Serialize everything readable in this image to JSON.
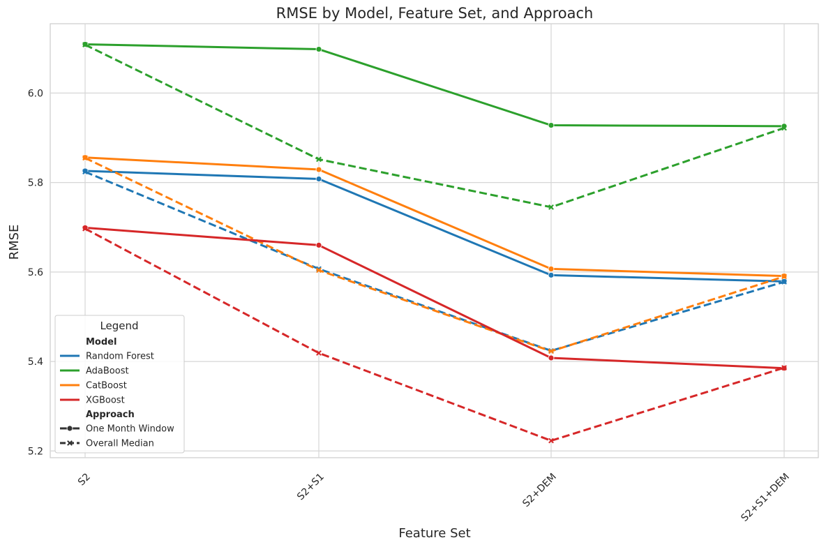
{
  "chart_data": {
    "type": "line",
    "title": "RMSE by Model, Feature Set, and Approach",
    "xlabel": "Feature Set",
    "ylabel": "RMSE",
    "categories": [
      "S2",
      "S2+S1",
      "S2+DEM",
      "S2+S1+DEM"
    ],
    "ylim": [
      5.185,
      6.155
    ],
    "yticks": [
      "5.2",
      "5.4",
      "5.6",
      "5.8",
      "6.0"
    ],
    "grid": true,
    "legend": {
      "title": "Legend",
      "placement": "lower-left",
      "model_heading": "Model",
      "approach_heading": "Approach",
      "models": [
        {
          "name": "Random Forest",
          "color": "#1f77b4"
        },
        {
          "name": "AdaBoost",
          "color": "#2ca02c"
        },
        {
          "name": "CatBoost",
          "color": "#ff7f0e"
        },
        {
          "name": "XGBoost",
          "color": "#d62728"
        }
      ],
      "approaches": [
        {
          "name": "One Month Window",
          "style": "solid",
          "marker": "circle"
        },
        {
          "name": "Overall Median",
          "style": "dashed",
          "marker": "x"
        }
      ]
    },
    "series": [
      {
        "name": "Random Forest",
        "approach": "One Month Window",
        "color": "#1f77b4",
        "values": [
          5.826,
          5.808,
          5.593,
          5.579
        ]
      },
      {
        "name": "Random Forest",
        "approach": "Overall Median",
        "color": "#1f77b4",
        "values": [
          5.824,
          5.607,
          5.424,
          5.578
        ]
      },
      {
        "name": "AdaBoost",
        "approach": "One Month Window",
        "color": "#2ca02c",
        "values": [
          6.109,
          6.098,
          5.928,
          5.926
        ]
      },
      {
        "name": "AdaBoost",
        "approach": "Overall Median",
        "color": "#2ca02c",
        "values": [
          6.108,
          5.852,
          5.745,
          5.922
        ]
      },
      {
        "name": "CatBoost",
        "approach": "One Month Window",
        "color": "#ff7f0e",
        "values": [
          5.856,
          5.829,
          5.607,
          5.591
        ]
      },
      {
        "name": "CatBoost",
        "approach": "Overall Median",
        "color": "#ff7f0e",
        "values": [
          5.855,
          5.604,
          5.423,
          5.59
        ]
      },
      {
        "name": "XGBoost",
        "approach": "One Month Window",
        "color": "#d62728",
        "values": [
          5.699,
          5.66,
          5.408,
          5.385
        ]
      },
      {
        "name": "XGBoost",
        "approach": "Overall Median",
        "color": "#d62728",
        "values": [
          5.697,
          5.419,
          5.223,
          5.386
        ]
      }
    ]
  }
}
